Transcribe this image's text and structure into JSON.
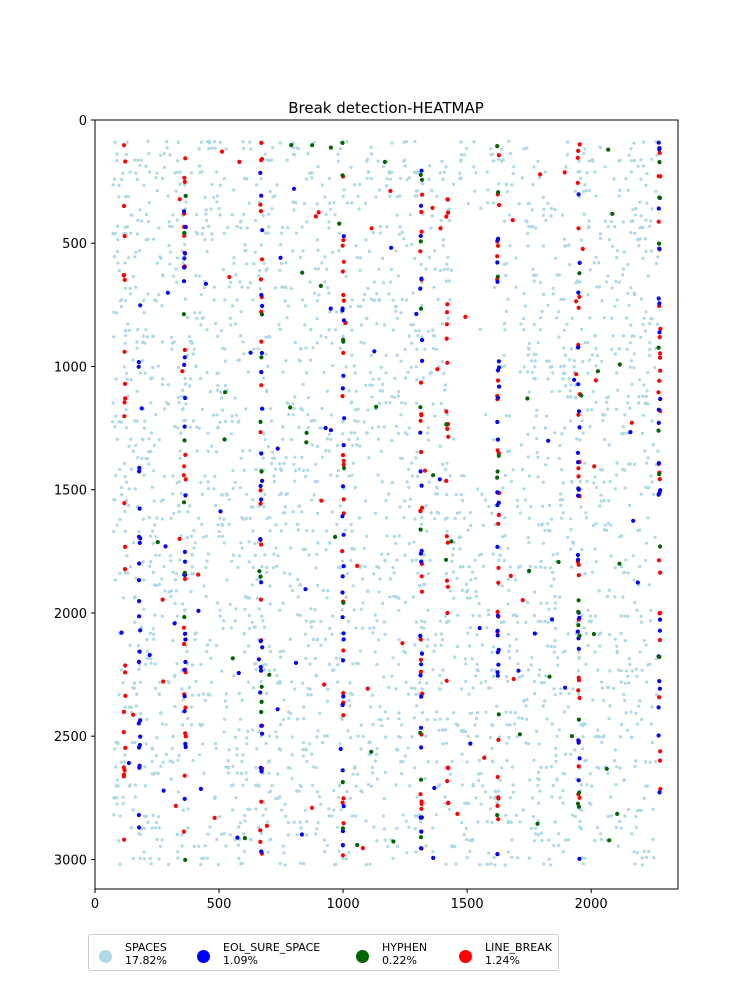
{
  "chart_data": {
    "type": "scatter",
    "title": "Break detection-HEATMAP",
    "xlabel": "",
    "ylabel": "",
    "xlim": [
      0,
      2350
    ],
    "ylim": [
      3120,
      0
    ],
    "y_inverted": true,
    "x_ticks": [
      0,
      500,
      1000,
      1500,
      2000
    ],
    "y_ticks": [
      0,
      500,
      1000,
      1500,
      2000,
      2500,
      3000
    ],
    "grid": false,
    "legend_position": "below",
    "series": [
      {
        "name": "SPACES",
        "percent": "17.82%",
        "color": "#add8e6",
        "x_range": [
          70,
          2270
        ],
        "y_range": [
          90,
          3020
        ],
        "approx_points": 3000
      },
      {
        "name": "EOL_SURE_SPACE",
        "percent": "1.09%",
        "color": "#0000ff",
        "column_x": [
          180,
          362,
          670,
          1000,
          1315,
          1625,
          1950,
          2275
        ]
      },
      {
        "name": "HYPHEN",
        "percent": "0.22%",
        "color": "#006400",
        "column_x": [
          362,
          670,
          1000,
          1315,
          1625,
          1950,
          2275
        ]
      },
      {
        "name": "LINE_BREAK",
        "percent": "1.24%",
        "color": "#ff0000",
        "column_x": [
          120,
          362,
          670,
          1000,
          1315,
          1420,
          1625,
          1950,
          2275
        ]
      }
    ]
  },
  "legend": [
    {
      "label": "SPACES",
      "pct": "17.82%",
      "color": "#add8e6"
    },
    {
      "label": "EOL_SURE_SPACE",
      "pct": "1.09%",
      "color": "#0000ff"
    },
    {
      "label": "HYPHEN",
      "pct": "0.22%",
      "color": "#006400"
    },
    {
      "label": "LINE_BREAK",
      "pct": "1.24%",
      "color": "#ff0000"
    }
  ]
}
